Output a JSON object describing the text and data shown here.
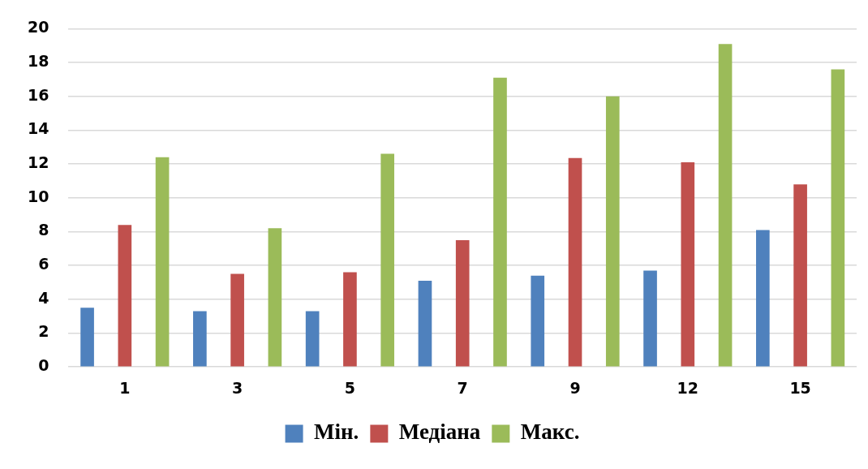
{
  "chart_data": {
    "type": "bar",
    "categories": [
      "1",
      "3",
      "5",
      "7",
      "9",
      "12",
      "15"
    ],
    "series": [
      {
        "name": "Мін.",
        "color": "#4f81bd",
        "values": [
          3.5,
          3.3,
          3.3,
          5.1,
          5.4,
          5.7,
          8.1
        ]
      },
      {
        "name": "Медіана",
        "color": "#c0504d",
        "values": [
          8.4,
          5.5,
          5.6,
          7.5,
          12.35,
          12.1,
          10.8
        ]
      },
      {
        "name": "Макс.",
        "color": "#9bbb59",
        "values": [
          12.4,
          8.2,
          12.6,
          17.1,
          16.0,
          19.1,
          17.6
        ]
      }
    ],
    "ylim": [
      0,
      20
    ],
    "yticks": [
      0,
      2,
      4,
      6,
      8,
      10,
      12,
      14,
      16,
      18,
      20
    ],
    "grid": "y",
    "legend": "bottom"
  }
}
